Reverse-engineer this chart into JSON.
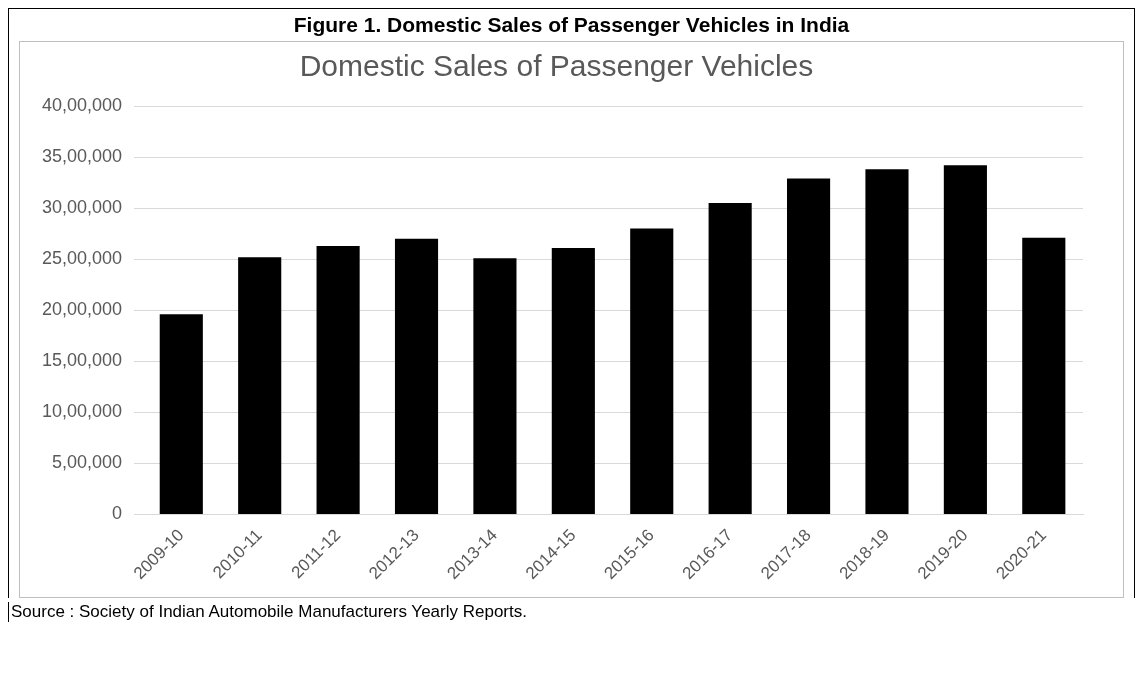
{
  "chart_data": {
    "type": "bar",
    "title": "Figure 1. Domestic Sales of Passenger Vehicles in India",
    "subtitle": "Domestic Sales of Passenger Vehicles",
    "categories": [
      "2009-10",
      "2010-11",
      "2011-12",
      "2012-13",
      "2013-14",
      "2014-15",
      "2015-16",
      "2016-17",
      "2017-18",
      "2018-19",
      "2019-20",
      "2020-21"
    ],
    "values": [
      1960000,
      2520000,
      2630000,
      2700000,
      2510000,
      2610000,
      2800000,
      3050000,
      3290000,
      3380000,
      3420000,
      2710000
    ],
    "color": "#000000",
    "ylim": [
      0,
      4000000
    ],
    "yticks": [
      {
        "value": 0,
        "label": "0"
      },
      {
        "value": 500000,
        "label": "5,00,000"
      },
      {
        "value": 1000000,
        "label": "10,00,000"
      },
      {
        "value": 1500000,
        "label": "15,00,000"
      },
      {
        "value": 2000000,
        "label": "20,00,000"
      },
      {
        "value": 2500000,
        "label": "25,00,000"
      },
      {
        "value": 3000000,
        "label": "30,00,000"
      },
      {
        "value": 3500000,
        "label": "35,00,000"
      },
      {
        "value": 4000000,
        "label": "40,00,000"
      }
    ],
    "grid": "y",
    "legend": false,
    "annotations": [
      "Source : Society of Indian Automobile Manufacturers Yearly Reports."
    ]
  }
}
